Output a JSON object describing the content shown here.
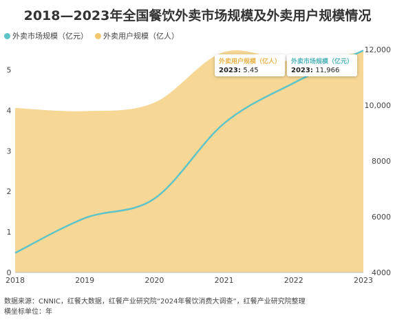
{
  "title": "2018—2023年全国餐饮外卖市场规模及外卖用户规模情况",
  "legend": [
    {
      "label": "外卖市场规模（亿元）",
      "color": "#5ec4c8"
    },
    {
      "label": "外卖用户规模（亿人）",
      "color": "#f2c76e"
    }
  ],
  "footer": {
    "source": "数据来源：CNNIC，红餐大数据，红餐产业研究院“2024年餐饮消费大调查”，红餐产业研究院整理",
    "xunit": "横坐标单位：年"
  },
  "tooltips": {
    "users": {
      "name": "外卖用户规模（亿人）",
      "year": "2023",
      "value": "5.45"
    },
    "market": {
      "name": "外卖市场规模（亿元）",
      "year": "2023",
      "value": "11,966"
    }
  },
  "chart_data": {
    "type": "area",
    "title": "2018—2023年全国餐饮外卖市场规模及外卖用户规模情况",
    "x": [
      "2018",
      "2019",
      "2020",
      "2021",
      "2022",
      "2023"
    ],
    "series": [
      {
        "name": "外卖用户规模（亿人）",
        "type": "area",
        "axis": "left",
        "color": "#f2c76e",
        "values": [
          4.06,
          3.98,
          4.19,
          5.44,
          5.21,
          5.45
        ]
      },
      {
        "name": "外卖市场规模（亿元）",
        "type": "line",
        "axis": "right",
        "color": "#5ec4c8",
        "values": [
          4700,
          5950,
          6650,
          9350,
          10800,
          11966
        ]
      }
    ],
    "y_left": {
      "ticks": [
        "0",
        "1",
        "2",
        "3",
        "4",
        "5"
      ],
      "range": [
        0,
        5.5
      ]
    },
    "y_right": {
      "ticks": [
        "4000",
        "6000",
        "8000",
        "10,000",
        "12,000"
      ],
      "range": [
        4000,
        12000
      ]
    },
    "grid": false,
    "legend_position": "top-left"
  }
}
